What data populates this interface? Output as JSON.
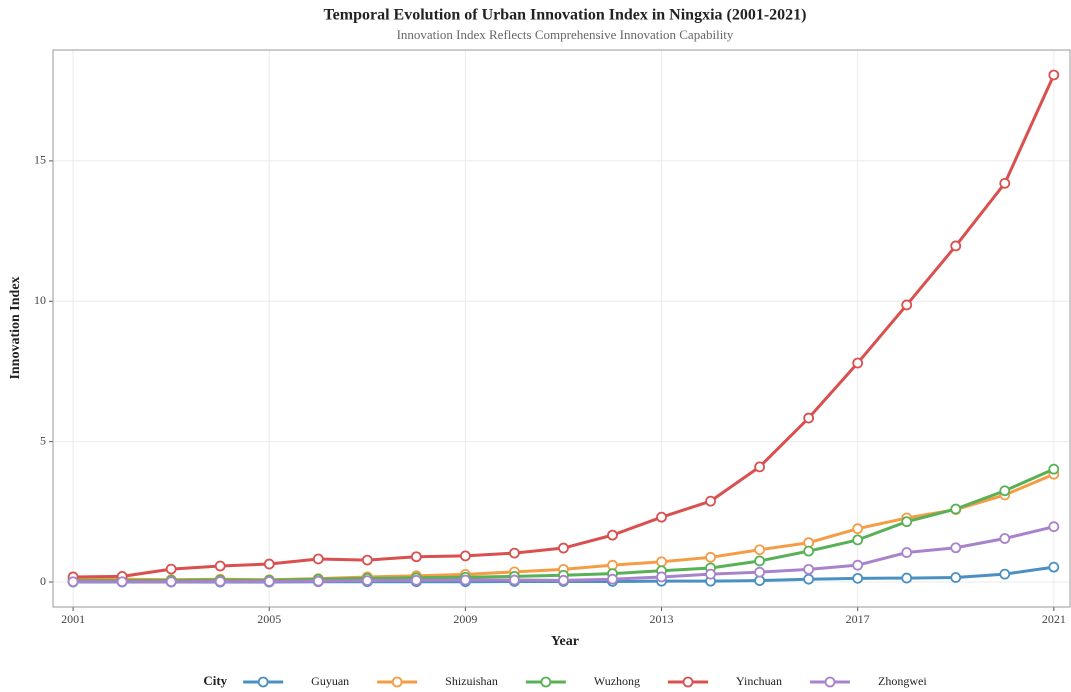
{
  "chart_data": {
    "type": "line",
    "title": "Temporal Evolution of Urban Innovation Index in Ningxia (2001-2021)",
    "subtitle": "Innovation Index Reflects Comprehensive Innovation Capability",
    "x_label": "Year",
    "y_label": "Innovation Index",
    "legend_title": "City",
    "legend_position": "bottom",
    "grid": true,
    "x": [
      2001,
      2002,
      2003,
      2004,
      2005,
      2006,
      2007,
      2008,
      2009,
      2010,
      2011,
      2012,
      2013,
      2014,
      2015,
      2016,
      2017,
      2018,
      2019,
      2020,
      2021
    ],
    "xlim": [
      2000.59,
      2021.33
    ],
    "xticks": [
      2001,
      2005,
      2009,
      2013,
      2017,
      2021
    ],
    "ylim": [
      -0.89,
      18.95
    ],
    "yticks": [
      0,
      5,
      10,
      15
    ],
    "series": [
      {
        "name": "Guyuan",
        "color": "#4a90c2",
        "values": [
          0,
          0,
          0,
          0,
          0,
          0.01,
          0.01,
          0.01,
          0.01,
          0.02,
          0.02,
          0.02,
          0.03,
          0.03,
          0.05,
          0.1,
          0.13,
          0.14,
          0.16,
          0.28,
          0.53
        ]
      },
      {
        "name": "Shizuishan",
        "color": "#f59c45",
        "values": [
          0.1,
          0.1,
          0.08,
          0.1,
          0.08,
          0.12,
          0.18,
          0.22,
          0.27,
          0.36,
          0.45,
          0.6,
          0.72,
          0.88,
          1.15,
          1.4,
          1.9,
          2.28,
          2.58,
          3.1,
          3.84
        ]
      },
      {
        "name": "Wuzhong",
        "color": "#58b155",
        "values": [
          0.05,
          0.05,
          0.06,
          0.07,
          0.06,
          0.1,
          0.13,
          0.15,
          0.17,
          0.2,
          0.24,
          0.3,
          0.4,
          0.5,
          0.75,
          1.1,
          1.5,
          2.15,
          2.6,
          3.25,
          4.02
        ]
      },
      {
        "name": "Yinchuan",
        "color": "#d9504e",
        "values": [
          0.18,
          0.2,
          0.46,
          0.57,
          0.64,
          0.82,
          0.78,
          0.9,
          0.93,
          1.03,
          1.21,
          1.67,
          2.31,
          2.88,
          4.1,
          5.84,
          7.8,
          9.87,
          11.97,
          14.2,
          18.06
        ]
      },
      {
        "name": "Zhongwei",
        "color": "#a883cc",
        "values": [
          0.01,
          0.01,
          0.01,
          0.02,
          0.02,
          0.03,
          0.05,
          0.06,
          0.07,
          0.07,
          0.06,
          0.1,
          0.18,
          0.28,
          0.35,
          0.45,
          0.6,
          1.05,
          1.22,
          1.55,
          1.97
        ]
      }
    ]
  }
}
